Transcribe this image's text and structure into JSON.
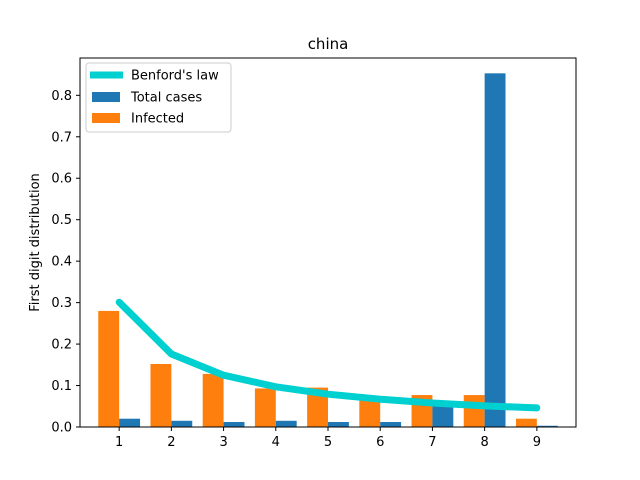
{
  "chart_data": {
    "type": "bar",
    "title": "china",
    "ylabel": "First digit distribution",
    "xlabel": "",
    "categories": [
      "1",
      "2",
      "3",
      "4",
      "5",
      "6",
      "7",
      "8",
      "9"
    ],
    "x": [
      1,
      2,
      3,
      4,
      5,
      6,
      7,
      8,
      9
    ],
    "ylim": [
      0,
      0.89
    ],
    "yticks": [
      "0.0",
      "0.1",
      "0.2",
      "0.3",
      "0.4",
      "0.5",
      "0.6",
      "0.7",
      "0.8"
    ],
    "grid": false,
    "legend_position": "top-left",
    "series": [
      {
        "name": "Benford's law",
        "type": "line",
        "color": "#00d0d0",
        "values": [
          0.301,
          0.176,
          0.125,
          0.097,
          0.079,
          0.067,
          0.058,
          0.051,
          0.046
        ]
      },
      {
        "name": "Total cases",
        "type": "bar",
        "color": "#1f77b4",
        "values": [
          0.02,
          0.015,
          0.012,
          0.015,
          0.012,
          0.012,
          0.05,
          0.853,
          0.003
        ]
      },
      {
        "name": "Infected",
        "type": "bar",
        "color": "#ff7f0e",
        "values": [
          0.28,
          0.152,
          0.128,
          0.093,
          0.095,
          0.068,
          0.077,
          0.077,
          0.02
        ]
      }
    ]
  }
}
